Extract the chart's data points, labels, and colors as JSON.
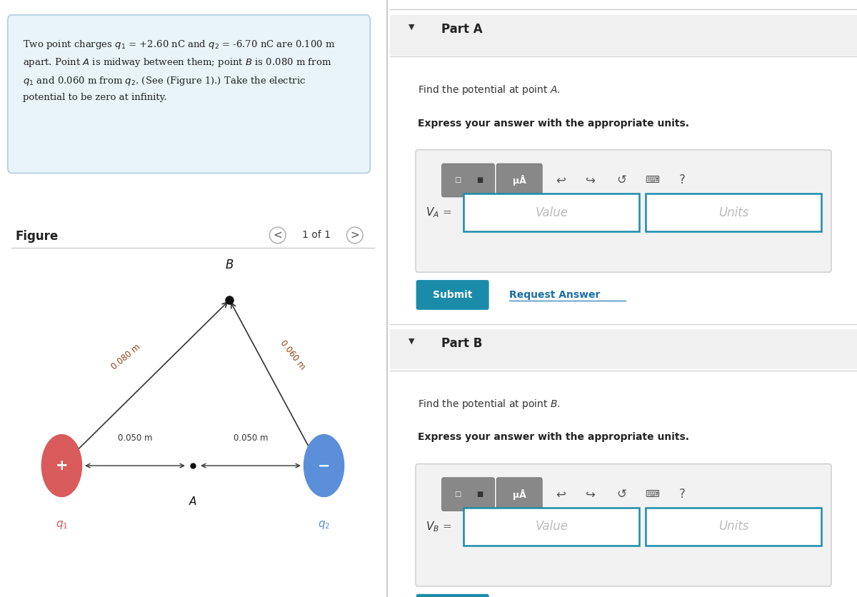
{
  "bg_color": "#ffffff",
  "left_panel_bg": "#e8f4f8",
  "left_panel_border": "#b0cfe0",
  "divider_color": "#cccccc",
  "problem_text_line1": "Two point charges $q_1$ = +2.60 nC and $q_2$ = -6.70 nC are 0.100 m",
  "problem_text_line2": "apart. Point $A$ is midway between them; point $B$ is 0.080 m from",
  "problem_text_line3": "$q_1$ and 0.060 m from $q_2$. (See (Figure 1).) Take the electric",
  "problem_text_line4": "potential to be zero at infinity.",
  "figure_label": "Figure",
  "figure_nav": "1 of 1",
  "q1_color": "#d95b5b",
  "q2_color": "#5b8fd9",
  "q1_label": "$q_1$",
  "q2_label": "$q_2$",
  "q1_sign": "+",
  "q2_sign": "−",
  "point_A_label": "$A$",
  "point_B_label": "$B$",
  "dist_q1_A": "0.050 m",
  "dist_A_q2": "0.050 m",
  "dist_q1_B": "0.080 m",
  "dist_B_q2": "0.060 m",
  "partA_header": "Part A",
  "partA_find": "Find the potential at point $A$.",
  "partA_express": "Express your answer with the appropriate units.",
  "partA_var": "$V_A$ =",
  "partA_value_placeholder": "Value",
  "partA_units_placeholder": "Units",
  "partB_header": "Part B",
  "partB_find": "Find the potential at point $B$.",
  "partB_express": "Express your answer with the appropriate units.",
  "partB_var": "$V_B$ =",
  "partB_value_placeholder": "Value",
  "partB_units_placeholder": "Units",
  "submit_color": "#1a8caa",
  "submit_text_color": "#ffffff",
  "request_answer_color": "#1a6ea8",
  "input_border_color": "#1a8caa",
  "input_bg": "#ffffff"
}
